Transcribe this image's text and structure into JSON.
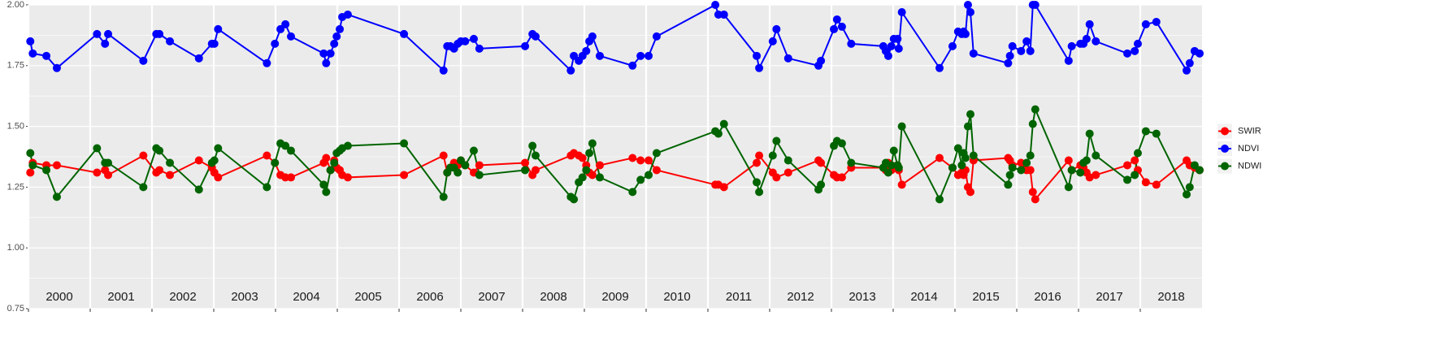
{
  "chart_data": {
    "type": "line",
    "x": [
      2000.03,
      2000.07,
      2000.29,
      2000.46,
      2001.11,
      2001.24,
      2001.29,
      2001.86,
      2002.07,
      2002.12,
      2002.29,
      2002.76,
      2002.97,
      2003.01,
      2003.07,
      2003.86,
      2003.99,
      2004.08,
      2004.16,
      2004.25,
      2004.78,
      2004.82,
      2004.89,
      2004.95,
      2004.99,
      2005.04,
      2005.08,
      2005.17,
      2006.08,
      2006.72,
      2006.78,
      2006.83,
      2006.89,
      2006.95,
      2007.0,
      2007.07,
      2007.21,
      2007.3,
      2008.04,
      2008.16,
      2008.21,
      2008.78,
      2008.83,
      2008.91,
      2008.97,
      2009.03,
      2009.08,
      2009.13,
      2009.25,
      2009.78,
      2009.91,
      2010.04,
      2010.17,
      2011.12,
      2011.17,
      2011.26,
      2011.79,
      2011.83,
      2012.05,
      2012.11,
      2012.3,
      2012.79,
      2012.83,
      2013.04,
      2013.09,
      2013.17,
      2013.32,
      2013.84,
      2013.88,
      2013.92,
      2013.97,
      2014.01,
      2014.07,
      2014.09,
      2014.14,
      2014.75,
      2014.96,
      2015.05,
      2015.11,
      2015.14,
      2015.17,
      2015.21,
      2015.25,
      2015.3,
      2015.86,
      2015.89,
      2015.93,
      2016.07,
      2016.16,
      2016.22,
      2016.26,
      2016.3,
      2016.84,
      2016.89,
      2017.03,
      2017.08,
      2017.13,
      2017.18,
      2017.28,
      2017.79,
      2017.91,
      2017.96,
      2018.09,
      2018.26,
      2018.75,
      2018.8,
      2018.88,
      2018.96
    ],
    "series": [
      {
        "name": "SWIR",
        "color": "#ff0000",
        "values": [
          1.31,
          1.35,
          1.34,
          1.34,
          1.31,
          1.32,
          1.3,
          1.38,
          1.31,
          1.32,
          1.3,
          1.36,
          1.33,
          1.31,
          1.29,
          1.38,
          1.35,
          1.3,
          1.29,
          1.29,
          1.35,
          1.37,
          1.32,
          1.36,
          1.33,
          1.32,
          1.3,
          1.29,
          1.3,
          1.38,
          1.31,
          1.33,
          1.35,
          1.34,
          1.36,
          1.34,
          1.31,
          1.34,
          1.35,
          1.3,
          1.32,
          1.38,
          1.39,
          1.38,
          1.37,
          1.34,
          1.31,
          1.3,
          1.34,
          1.37,
          1.36,
          1.36,
          1.32,
          1.26,
          1.26,
          1.25,
          1.35,
          1.38,
          1.31,
          1.29,
          1.31,
          1.36,
          1.35,
          1.3,
          1.29,
          1.29,
          1.33,
          1.33,
          1.32,
          1.35,
          1.32,
          1.33,
          1.34,
          1.32,
          1.26,
          1.37,
          1.33,
          1.3,
          1.31,
          1.3,
          1.32,
          1.25,
          1.23,
          1.36,
          1.37,
          1.36,
          1.34,
          1.35,
          1.32,
          1.32,
          1.23,
          1.2,
          1.36,
          1.32,
          1.34,
          1.33,
          1.31,
          1.29,
          1.3,
          1.34,
          1.36,
          1.32,
          1.27,
          1.26,
          1.36,
          1.34,
          1.33,
          1.32
        ]
      },
      {
        "name": "NDVI",
        "color": "#0000ff",
        "values": [
          1.85,
          1.8,
          1.79,
          1.74,
          1.88,
          1.84,
          1.88,
          1.77,
          1.88,
          1.88,
          1.85,
          1.78,
          1.84,
          1.84,
          1.9,
          1.76,
          1.84,
          1.9,
          1.92,
          1.87,
          1.8,
          1.76,
          1.8,
          1.84,
          1.87,
          1.9,
          1.95,
          1.96,
          1.88,
          1.73,
          1.83,
          1.83,
          1.82,
          1.84,
          1.85,
          1.85,
          1.86,
          1.82,
          1.83,
          1.88,
          1.87,
          1.73,
          1.79,
          1.77,
          1.79,
          1.81,
          1.85,
          1.87,
          1.79,
          1.75,
          1.79,
          1.79,
          1.87,
          2.0,
          1.96,
          1.96,
          1.79,
          1.74,
          1.85,
          1.9,
          1.78,
          1.75,
          1.77,
          1.9,
          1.94,
          1.91,
          1.84,
          1.83,
          1.81,
          1.79,
          1.83,
          1.86,
          1.86,
          1.82,
          1.97,
          1.74,
          1.83,
          1.89,
          1.88,
          1.89,
          1.88,
          2.0,
          1.97,
          1.8,
          1.76,
          1.79,
          1.83,
          1.81,
          1.85,
          1.81,
          2.0,
          2.0,
          1.77,
          1.83,
          1.84,
          1.84,
          1.86,
          1.92,
          1.85,
          1.8,
          1.81,
          1.84,
          1.92,
          1.93,
          1.73,
          1.76,
          1.81,
          1.8
        ]
      },
      {
        "name": "NDWI",
        "color": "#006400",
        "values": [
          1.39,
          1.34,
          1.32,
          1.21,
          1.41,
          1.35,
          1.35,
          1.25,
          1.41,
          1.4,
          1.35,
          1.24,
          1.35,
          1.36,
          1.41,
          1.25,
          1.35,
          1.43,
          1.42,
          1.4,
          1.26,
          1.23,
          1.32,
          1.35,
          1.39,
          1.4,
          1.41,
          1.42,
          1.43,
          1.21,
          1.31,
          1.33,
          1.33,
          1.31,
          1.36,
          1.34,
          1.4,
          1.3,
          1.32,
          1.42,
          1.38,
          1.21,
          1.2,
          1.27,
          1.29,
          1.32,
          1.39,
          1.43,
          1.29,
          1.23,
          1.28,
          1.3,
          1.39,
          1.48,
          1.47,
          1.51,
          1.27,
          1.23,
          1.38,
          1.44,
          1.36,
          1.24,
          1.26,
          1.42,
          1.44,
          1.43,
          1.35,
          1.33,
          1.35,
          1.31,
          1.34,
          1.4,
          1.34,
          1.33,
          1.5,
          1.2,
          1.33,
          1.41,
          1.34,
          1.39,
          1.37,
          1.5,
          1.55,
          1.38,
          1.26,
          1.3,
          1.33,
          1.32,
          1.35,
          1.38,
          1.51,
          1.57,
          1.25,
          1.32,
          1.31,
          1.35,
          1.36,
          1.47,
          1.38,
          1.28,
          1.3,
          1.39,
          1.48,
          1.47,
          1.22,
          1.25,
          1.34,
          1.32
        ]
      }
    ],
    "xlim": [
      2000,
      2019
    ],
    "xticks": [
      2000,
      2001,
      2002,
      2003,
      2004,
      2005,
      2006,
      2007,
      2008,
      2009,
      2010,
      2011,
      2012,
      2013,
      2014,
      2015,
      2016,
      2017,
      2018
    ],
    "ylim": [
      0.75,
      2
    ],
    "yticks": [
      0.75,
      {
        "value": 1,
        "label": "1.00"
      },
      1.25,
      {
        "value": 1.5,
        "label": "1.50"
      },
      1.75,
      {
        "value": 2,
        "label": "2.00"
      }
    ],
    "grid": true,
    "legend": "right"
  }
}
